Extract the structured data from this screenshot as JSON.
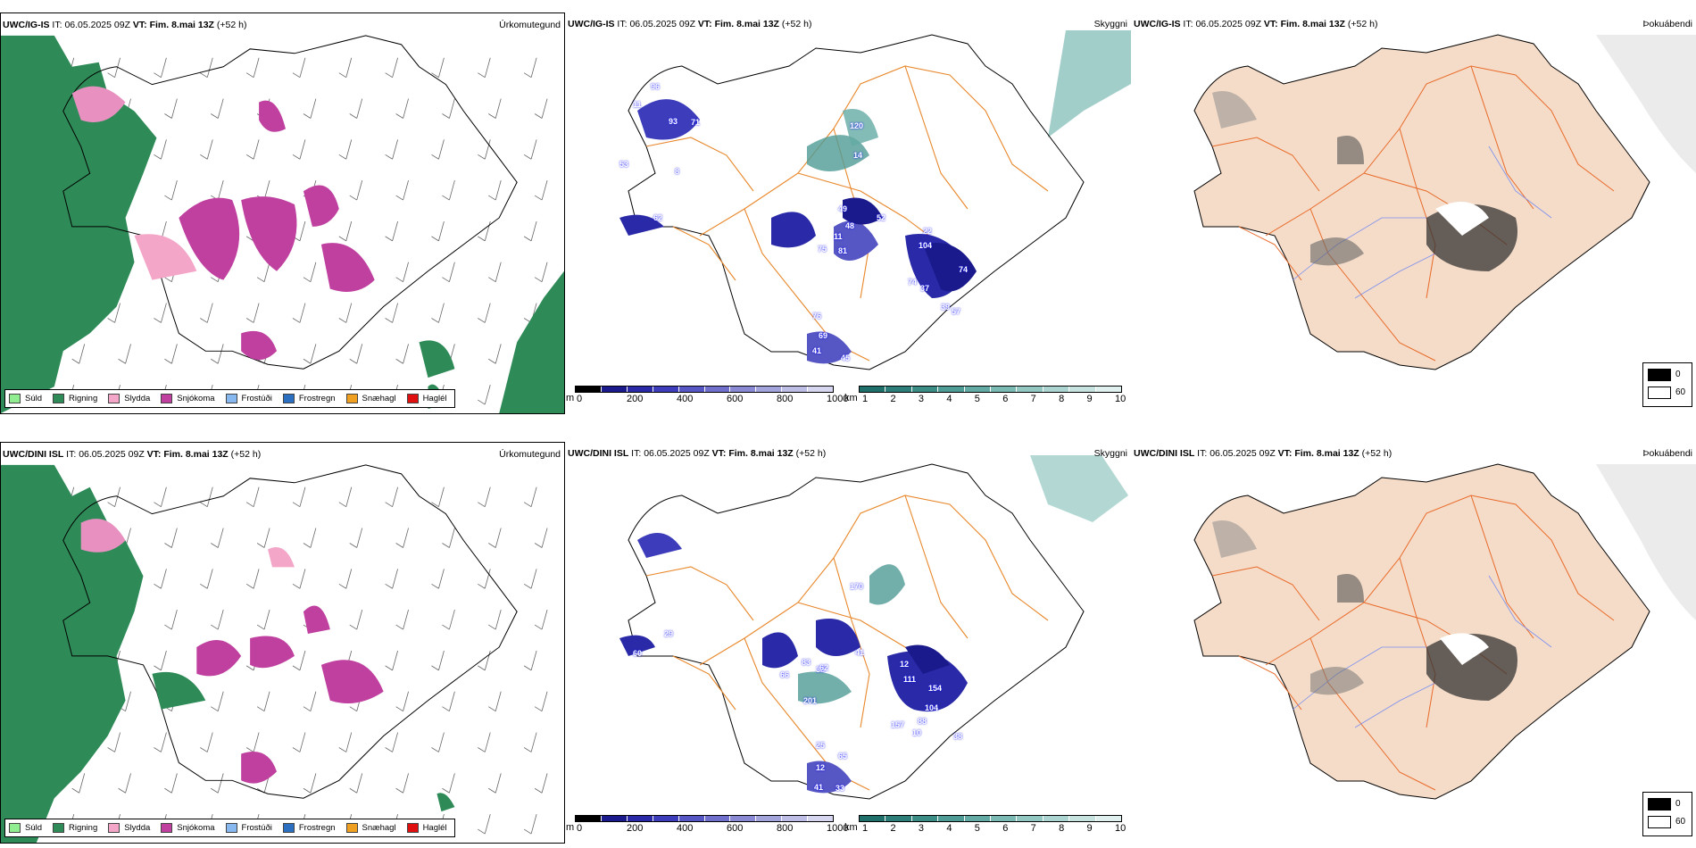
{
  "rows": [
    {
      "model": "UWC/IG-IS",
      "it_label": "IT:",
      "it": "06.05.2025 09Z",
      "vt_label": "VT:",
      "vt": "Fim. 8.mai 13Z",
      "lead": "(+52 h)",
      "cloud_values": [
        "96",
        "11",
        "93",
        "71",
        "53",
        "8",
        "120",
        "14",
        "49",
        "52",
        "48",
        "11",
        "75",
        "81",
        "22",
        "104",
        "74",
        "37",
        "39",
        "74",
        "57",
        "76",
        "69",
        "41",
        "45",
        "62"
      ],
      "cloud_values_pos": []
    },
    {
      "model": "UWC/DINI ISL",
      "it_label": "IT:",
      "it": "06.05.2025 09Z",
      "vt_label": "VT:",
      "vt": "Fim. 8.mai 13Z",
      "lead": "(+52 h)",
      "cloud_values": [
        "170",
        "38",
        "66",
        "62",
        "41",
        "83",
        "12",
        "111",
        "154",
        "104",
        "88",
        "201",
        "157",
        "38",
        "10",
        "25",
        "65",
        "12",
        "41",
        "33",
        "29",
        "60"
      ]
    }
  ],
  "panel_titles": {
    "precip": "Úrkomutegund",
    "cloud": "Skyggni",
    "fog": "Þokuábendi"
  },
  "precip_legend": [
    {
      "label": "Súld",
      "color": "#90ee90"
    },
    {
      "label": "Rigning",
      "color": "#2e8b57"
    },
    {
      "label": "Slydda",
      "color": "#f4a6c8"
    },
    {
      "label": "Snjókoma",
      "color": "#c040a0"
    },
    {
      "label": "Frostúði",
      "color": "#87b8ef"
    },
    {
      "label": "Frostregn",
      "color": "#2a6fc0"
    },
    {
      "label": "Snæhagl",
      "color": "#f0a020"
    },
    {
      "label": "Haglél",
      "color": "#e01010"
    }
  ],
  "cloud_base_bar": {
    "unit": "m",
    "ticks": [
      "0",
      "200",
      "400",
      "600",
      "800",
      "1000"
    ],
    "colors": [
      "#000000",
      "#1a1a8c",
      "#2a2aa8",
      "#3d3dbb",
      "#5656c4",
      "#7070cc",
      "#8a8ad4",
      "#a4a4dc",
      "#bdbde6",
      "#d6d6f0"
    ]
  },
  "visibility_bar": {
    "unit": "km",
    "ticks": [
      "1",
      "2",
      "3",
      "4",
      "5",
      "6",
      "7",
      "8",
      "9",
      "10"
    ],
    "colors": [
      "#1f6f6a",
      "#2d7d78",
      "#3c8c86",
      "#4f9b95",
      "#64aaa4",
      "#7bb9b3",
      "#93c7c2",
      "#acd5d1",
      "#c6e3e0",
      "#e0f0ee"
    ]
  },
  "fog_key": {
    "top": "0",
    "bottom": "60",
    "top_color": "#000000",
    "bottom_color": "#ffffff"
  },
  "colors": {
    "land": "#f5dcc8",
    "road": "#e86a2a",
    "coast": "#000000",
    "rain_green": "#2e8b57",
    "snow_magenta": "#c040a0"
  }
}
